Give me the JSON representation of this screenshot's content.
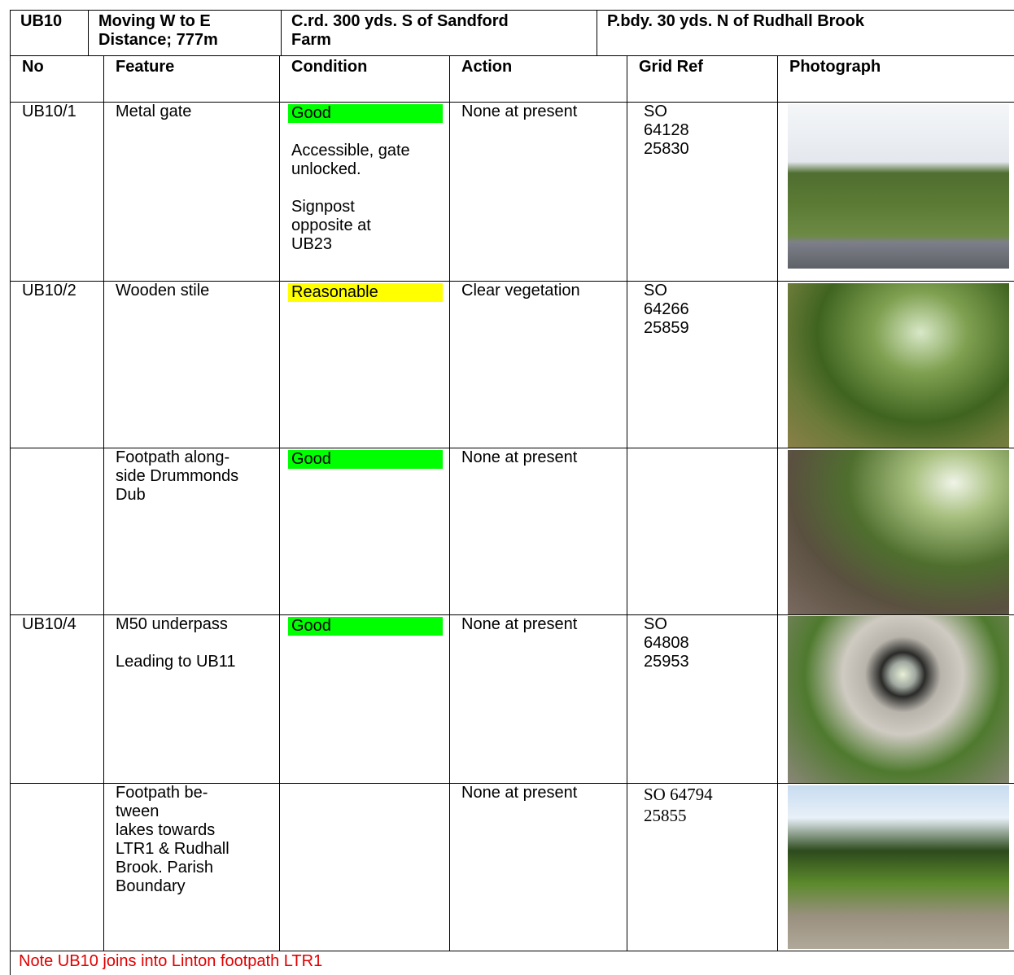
{
  "header": {
    "cells": [
      [
        "UB10"
      ],
      [
        "Moving W to E",
        "Distance; 777m"
      ],
      [
        "C.rd. 300 yds. S of Sandford",
        "Farm"
      ],
      [
        "P.bdy. 30 yds. N of Rudhall Brook"
      ]
    ]
  },
  "columns": [
    "No",
    "Feature",
    "Condition",
    "Action",
    "Grid Ref",
    "Photograph"
  ],
  "rows": [
    {
      "no": "UB10/1",
      "feature": [
        [
          "Metal gate"
        ]
      ],
      "condition": {
        "status": "Good",
        "color": "#00ff00",
        "notes": [
          [
            "Accessible, gate",
            "unlocked."
          ],
          [
            "Signpost",
            "opposite at",
            "UB23"
          ]
        ]
      },
      "action": "None at present",
      "grid_ref": [
        "SO",
        "64128",
        "25830"
      ]
    },
    {
      "no": "UB10/2",
      "feature": [
        [
          "Wooden stile"
        ]
      ],
      "condition": {
        "status": "Reasonable",
        "color": "#ffff00",
        "notes": []
      },
      "action": "Clear vegetation",
      "grid_ref": [
        "SO",
        "64266",
        "25859"
      ]
    },
    {
      "no": null,
      "feature": [
        [
          "Footpath along-",
          "side Drummonds",
          "Dub"
        ]
      ],
      "condition": {
        "status": "Good",
        "color": "#00ff00",
        "notes": []
      },
      "action": "None at present",
      "grid_ref": []
    },
    {
      "no": "UB10/4",
      "feature": [
        [
          "M50 underpass"
        ],
        [
          "Leading to UB11"
        ]
      ],
      "condition": {
        "status": "Good",
        "color": "#00ff00",
        "notes": []
      },
      "action": "None at present",
      "grid_ref": [
        "SO",
        "64808",
        "25953"
      ]
    },
    {
      "no": null,
      "feature": [
        [
          "Footpath be-",
          "tween",
          "lakes towards",
          "LTR1 & Rudhall",
          "Brook. Parish",
          "Boundary"
        ]
      ],
      "condition": null,
      "action": "None at present",
      "grid_ref": [
        "SO 64794",
        "25855"
      ],
      "grid_ref_serif": true
    }
  ],
  "note": "Note UB10 joins into Linton footpath LTR1"
}
